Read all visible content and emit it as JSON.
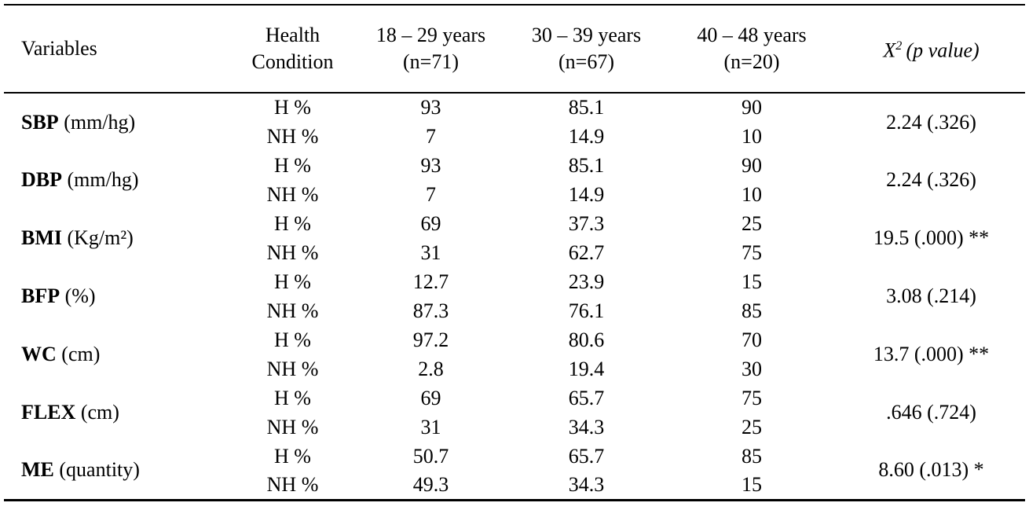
{
  "page": {
    "background_color": "#ffffff",
    "text_color": "#000000"
  },
  "table": {
    "header": {
      "variables": "Variables",
      "health_line1": "Health",
      "health_line2": "Condition",
      "age_groups": [
        {
          "range": "18 – 29 years",
          "n": "(n=71)"
        },
        {
          "range": "30 – 39 years",
          "n": "(n=67)"
        },
        {
          "range": "40 – 48 years",
          "n": "(n=20)"
        }
      ],
      "chi_x": "X",
      "chi_sup": "2",
      "chi_p": "(p value)"
    },
    "condition_labels": {
      "healthy": "H %",
      "not_healthy": "NH %"
    },
    "rows": [
      {
        "abbr": "SBP",
        "unit": "(mm/hg)",
        "h_values": [
          "93",
          "85.1",
          "90"
        ],
        "nh_values": [
          "7",
          "14.9",
          "10"
        ],
        "chi": "2.24 (.326)"
      },
      {
        "abbr": "DBP",
        "unit": "(mm/hg)",
        "h_values": [
          "93",
          "85.1",
          "90"
        ],
        "nh_values": [
          "7",
          "14.9",
          "10"
        ],
        "chi": "2.24 (.326)"
      },
      {
        "abbr": "BMI",
        "unit": "(Kg/m²)",
        "h_values": [
          "69",
          "37.3",
          "25"
        ],
        "nh_values": [
          "31",
          "62.7",
          "75"
        ],
        "chi": "19.5 (.000) **"
      },
      {
        "abbr": "BFP",
        "unit": "(%)",
        "h_values": [
          "12.7",
          "23.9",
          "15"
        ],
        "nh_values": [
          "87.3",
          "76.1",
          "85"
        ],
        "chi": "3.08 (.214)"
      },
      {
        "abbr": "WC",
        "unit": "(cm)",
        "h_values": [
          "97.2",
          "80.6",
          "70"
        ],
        "nh_values": [
          "2.8",
          "19.4",
          "30"
        ],
        "chi": "13.7 (.000) **"
      },
      {
        "abbr": "FLEX",
        "unit": "(cm)",
        "h_values": [
          "69",
          "65.7",
          "75"
        ],
        "nh_values": [
          "31",
          "34.3",
          "25"
        ],
        "chi": ".646 (.724)"
      },
      {
        "abbr": "ME",
        "unit": "(quantity)",
        "h_values": [
          "50.7",
          "65.7",
          "85"
        ],
        "nh_values": [
          "49.3",
          "34.3",
          "15"
        ],
        "chi": "8.60 (.013) *"
      }
    ]
  }
}
